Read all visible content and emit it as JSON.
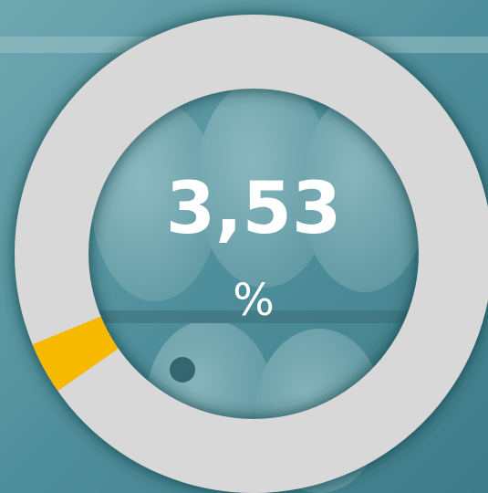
{
  "chart_data": {
    "type": "donut",
    "values": [
      3.53
    ],
    "value_labels": [
      "3,53"
    ],
    "unit": "%",
    "range": [
      0,
      100
    ],
    "color": "#f6b900",
    "track_color": "#d8d8d8"
  }
}
